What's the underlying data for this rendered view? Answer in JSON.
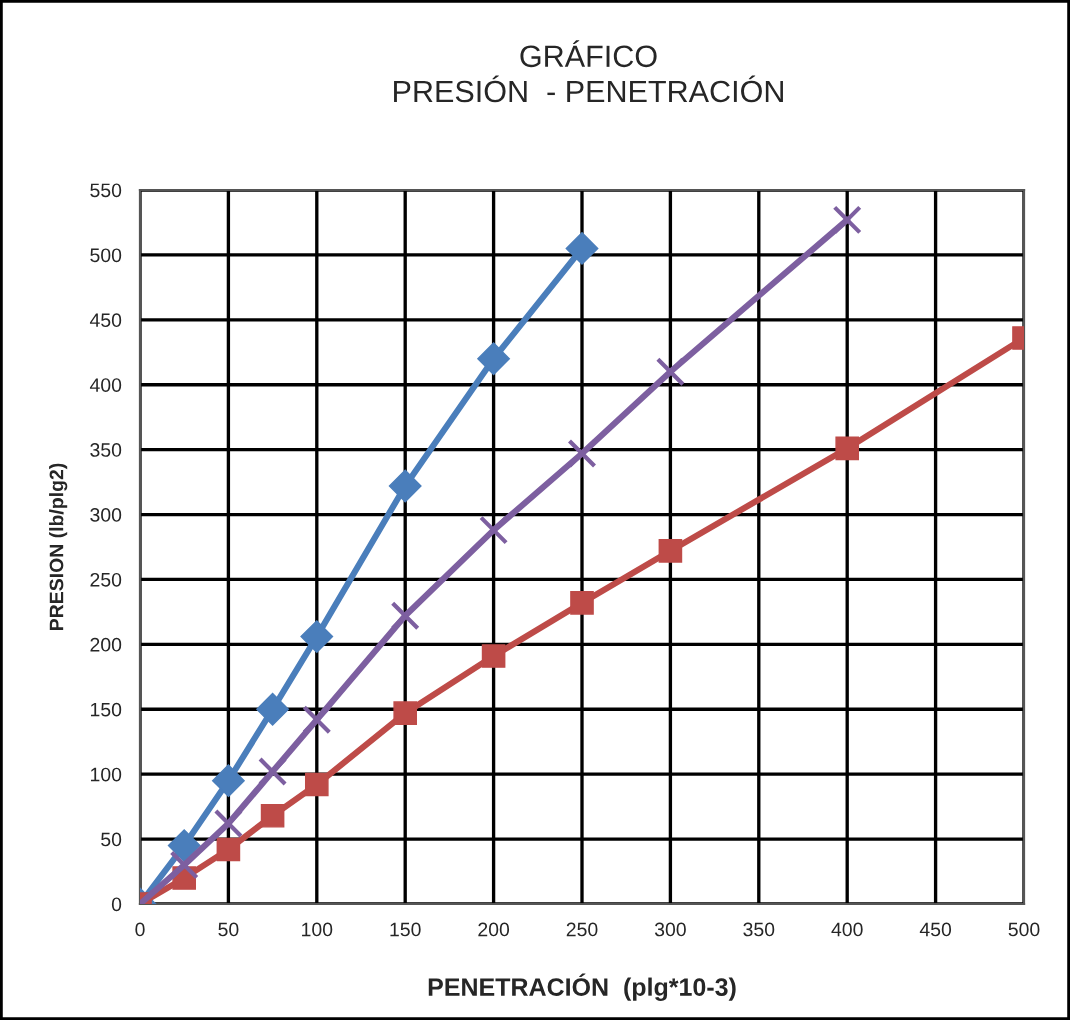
{
  "chart_data": {
    "type": "line",
    "title": "GRÁFICO\nPRESIÓN  - PENETRACIÓN",
    "xlabel": "PENETRACIÓN  (plg*10-3)",
    "ylabel": "PRESION (lb/plg2)",
    "xlim": [
      0,
      500
    ],
    "xticks": [
      0,
      50,
      100,
      150,
      200,
      250,
      300,
      350,
      400,
      450,
      500
    ],
    "ylim": [
      0,
      550
    ],
    "yticks": [
      0,
      50,
      100,
      150,
      200,
      250,
      300,
      350,
      400,
      450,
      500,
      550
    ],
    "grid": true,
    "legend": false,
    "line_style": "solid",
    "series": [
      {
        "color": "#4a7ebb",
        "marker": "diamond",
        "x": [
          0,
          25,
          50,
          75,
          100,
          150,
          200,
          250
        ],
        "values": [
          0,
          45,
          95,
          150,
          206,
          322,
          420,
          505
        ]
      },
      {
        "color": "#7d5fa0",
        "marker": "cross",
        "x": [
          0,
          25,
          50,
          75,
          100,
          150,
          200,
          250,
          300,
          400
        ],
        "values": [
          0,
          30,
          62,
          102,
          142,
          222,
          288,
          347,
          410,
          527
        ]
      },
      {
        "color": "#be4b48",
        "marker": "square",
        "x": [
          0,
          25,
          50,
          75,
          100,
          150,
          200,
          250,
          300,
          400,
          500
        ],
        "values": [
          0,
          20,
          42,
          68,
          92,
          147,
          191,
          232,
          272,
          351,
          436
        ]
      }
    ]
  }
}
